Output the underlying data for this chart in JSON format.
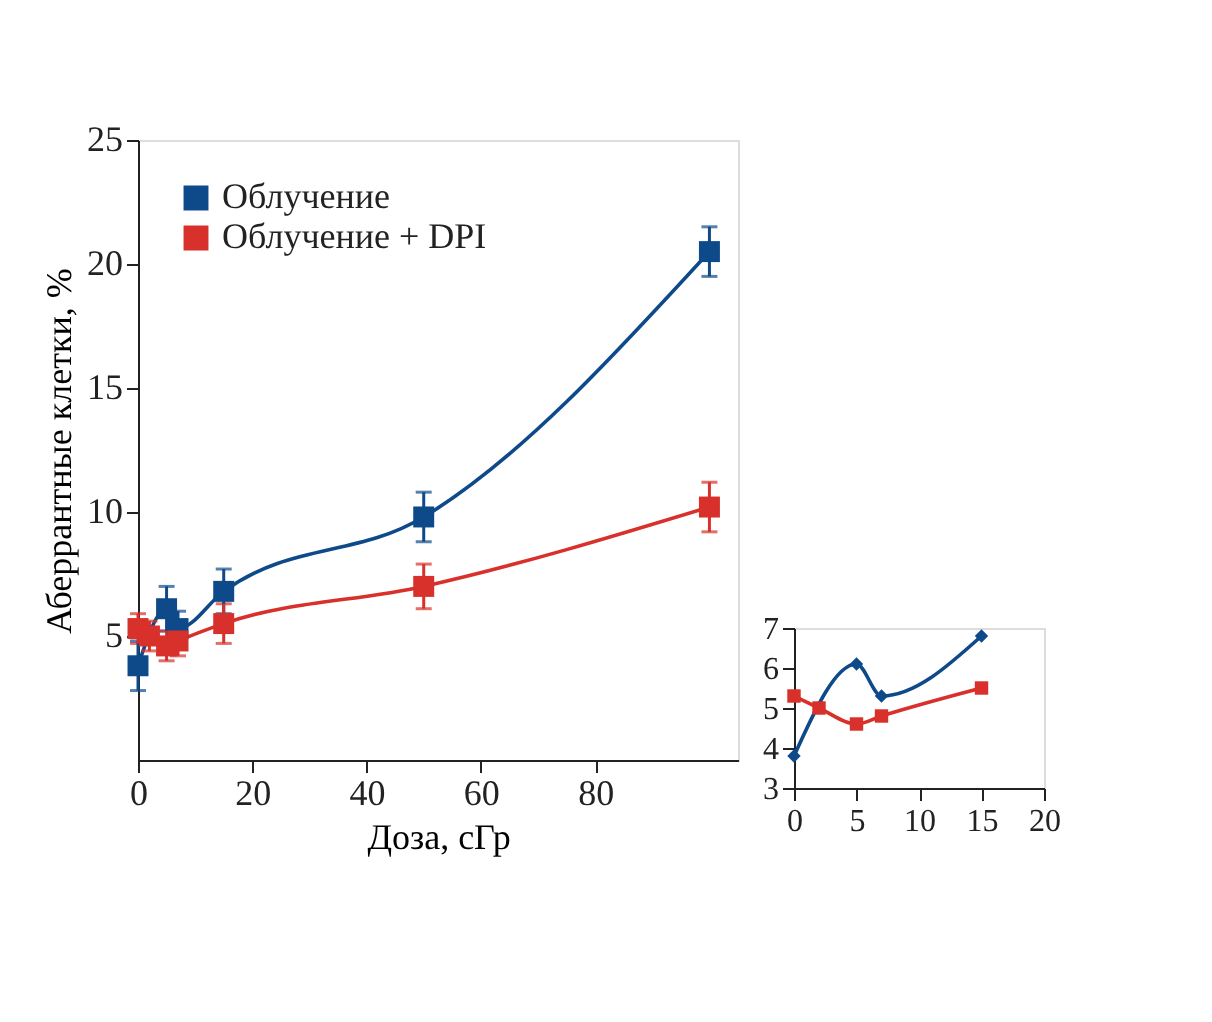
{
  "chart_data": [
    {
      "type": "line",
      "xlabel": "Доза, сГр",
      "ylabel": "Аберрантные клетки, %",
      "xlim": [
        0,
        105
      ],
      "xticks": [
        0,
        20,
        40,
        60,
        80
      ],
      "ylim": [
        0,
        25
      ],
      "yticks": [
        5,
        10,
        15,
        20,
        25
      ],
      "marker": "square",
      "legend": "top left",
      "grid": false,
      "series": [
        {
          "name": "Облучение",
          "color": "#0e4a8a",
          "x": [
            0,
            5,
            7,
            15,
            50,
            100
          ],
          "values": [
            3.8,
            6.1,
            5.3,
            6.8,
            9.8,
            20.5
          ],
          "errors": [
            1.0,
            0.9,
            0.7,
            0.9,
            1.0,
            1.0
          ]
        },
        {
          "name": "Облучение + DPI",
          "color": "#d8302a",
          "x": [
            0,
            2,
            5,
            7,
            15,
            50,
            100
          ],
          "values": [
            5.3,
            5.0,
            4.6,
            4.8,
            5.5,
            7.0,
            10.2
          ],
          "errors": [
            0.6,
            0.6,
            0.6,
            0.6,
            0.8,
            0.9,
            1.0
          ]
        }
      ]
    },
    {
      "type": "line",
      "xlim": [
        0,
        20
      ],
      "xticks": [
        0,
        5,
        10,
        15,
        20
      ],
      "ylim": [
        3,
        7
      ],
      "yticks": [
        3,
        4,
        5,
        6,
        7
      ],
      "grid": false,
      "series": [
        {
          "color": "#0e4a8a",
          "marker": "diamond",
          "x": [
            0,
            5,
            7,
            15
          ],
          "values": [
            3.8,
            6.1,
            5.3,
            6.8
          ]
        },
        {
          "color": "#d8302a",
          "marker": "square",
          "x": [
            0,
            2,
            5,
            7,
            15
          ],
          "values": [
            5.3,
            5.0,
            4.6,
            4.8,
            5.5
          ]
        }
      ]
    }
  ]
}
